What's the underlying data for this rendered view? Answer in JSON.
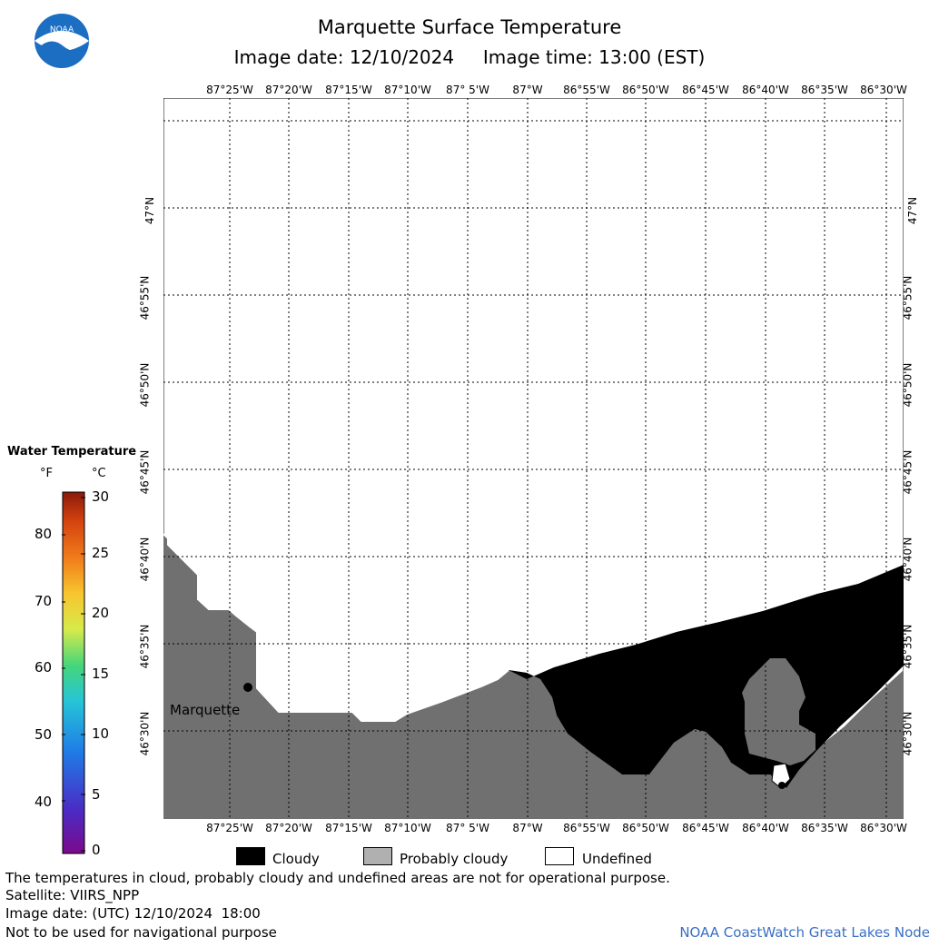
{
  "header": {
    "title": "Marquette Surface Temperature",
    "image_date_label": "Image date: 12/10/2024",
    "image_time_label": "Image time: 13:00 (EST)"
  },
  "logo": {
    "text": "NOAA",
    "color": "#1b6ec2"
  },
  "map": {
    "lon_labels": [
      "87°25'W",
      "87°20'W",
      "87°15'W",
      "87°10'W",
      "87° 5'W",
      "87°W",
      "86°55'W",
      "86°50'W",
      "86°45'W",
      "86°40'W",
      "86°35'W",
      "86°30'W"
    ],
    "lat_labels": [
      "47°N",
      "46°55'N",
      "46°50'N",
      "46°45'N",
      "46°40'N",
      "46°35'N",
      "46°30'N"
    ],
    "place_label": "Marquette",
    "colors": {
      "land": "#707070",
      "cloud": "#000000",
      "probably_cloudy": "#b0b0b0",
      "undefined": "#ffffff"
    }
  },
  "colorbar": {
    "title": "Water Temperature",
    "unit_f": "°F",
    "unit_c": "°C",
    "f_ticks": [
      "80",
      "70",
      "60",
      "50",
      "40"
    ],
    "c_ticks": [
      "30",
      "25",
      "20",
      "15",
      "10",
      "5",
      "0"
    ],
    "c_range": [
      0,
      30
    ]
  },
  "legend": {
    "cloudy": "Cloudy",
    "probably_cloudy": "Probably cloudy",
    "undefined": "Undefined"
  },
  "footer": {
    "note": "The temperatures in cloud, probably cloudy and undefined areas are not for operational purpose.",
    "satellite": "Satellite: VIIRS_NPP",
    "utc_date": "Image date: (UTC) 12/10/2024  18:00",
    "nav_warning": "Not to be used for navigational purpose",
    "credit": "NOAA CoastWatch Great Lakes Node"
  }
}
